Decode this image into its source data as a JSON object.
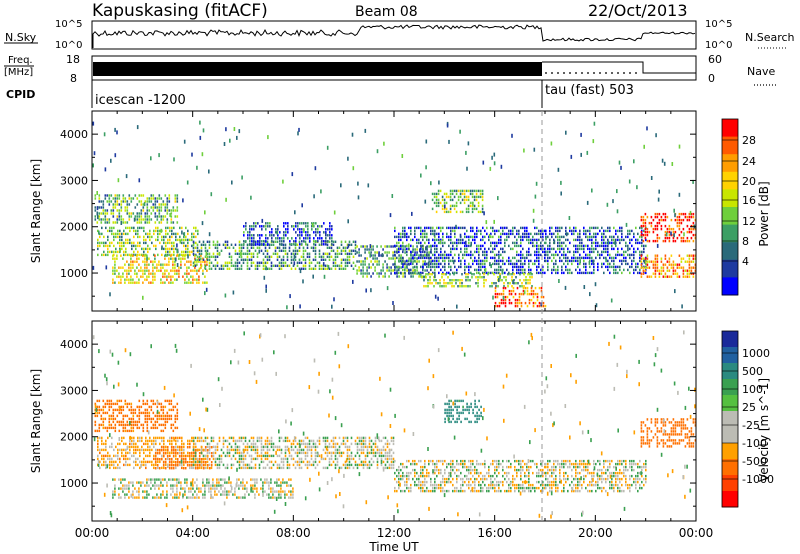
{
  "header": {
    "station": "Kapuskasing (fitACF)",
    "beam": "Beam 08",
    "date": "22/Oct/2013"
  },
  "top_panels": {
    "nsky_label": "N.Sky",
    "nsky_ticks": [
      "10^5",
      "10^0"
    ],
    "nsearch_label": "N.Search",
    "nsearch_ticks": [
      "10^5",
      "10^0"
    ],
    "freq_label": "Freq.",
    "freq_unit": "[MHz]",
    "freq_ticks": [
      "18",
      "8"
    ],
    "nave_label": "Nave",
    "nave_ticks": [
      "60",
      "0"
    ],
    "cpid_label": "CPID",
    "cpid_segments": [
      {
        "label": "icescan -1200",
        "start_hour": 0,
        "end_hour": 18
      },
      {
        "label": "tau (fast) 503",
        "start_hour": 18,
        "end_hour": 24
      }
    ]
  },
  "chart_data": [
    {
      "type": "heatmap",
      "name": "power-panel",
      "ylabel": "Slant Range [km]",
      "y_ticks": [
        1000,
        2000,
        3000,
        4000
      ],
      "ylim": [
        180,
        4500
      ],
      "xlim": [
        0,
        24
      ],
      "colorbar": {
        "label": "Power [dB]",
        "ticks": [
          "28",
          "24",
          "20",
          "16",
          "12",
          "8",
          "4"
        ],
        "colors": [
          "#ff0000",
          "#ff5a00",
          "#ff9d00",
          "#ffd200",
          "#c8e600",
          "#6fcf3c",
          "#3c9f64",
          "#2a6a7a",
          "#1e3aa0",
          "#0000ff"
        ]
      },
      "echo_regions": [
        {
          "start_hour": 0.1,
          "end_hour": 3.4,
          "range_km": [
            2100,
            2700
          ],
          "db": 12
        },
        {
          "start_hour": 0.2,
          "end_hour": 4.2,
          "range_km": [
            1400,
            2000
          ],
          "db": 14
        },
        {
          "start_hour": 0.8,
          "end_hour": 4.6,
          "range_km": [
            800,
            1400
          ],
          "db": 18
        },
        {
          "start_hour": 4.0,
          "end_hour": 10.5,
          "range_km": [
            1100,
            1700
          ],
          "db": 10
        },
        {
          "start_hour": 6.0,
          "end_hour": 9.5,
          "range_km": [
            1600,
            2100
          ],
          "db": 6
        },
        {
          "start_hour": 10.5,
          "end_hour": 13.5,
          "range_km": [
            900,
            1600
          ],
          "db": 10
        },
        {
          "start_hour": 12.0,
          "end_hour": 18.0,
          "range_km": [
            1000,
            2000
          ],
          "db": 6
        },
        {
          "start_hour": 13.5,
          "end_hour": 15.5,
          "range_km": [
            2300,
            2800
          ],
          "db": 14
        },
        {
          "start_hour": 13.0,
          "end_hour": 17.5,
          "range_km": [
            700,
            1000
          ],
          "db": 14
        },
        {
          "start_hour": 16.0,
          "end_hour": 18.0,
          "range_km": [
            300,
            700
          ],
          "db": 26
        },
        {
          "start_hour": 18.0,
          "end_hour": 22.0,
          "range_km": [
            1000,
            2000
          ],
          "db": 6
        },
        {
          "start_hour": 21.8,
          "end_hour": 24.0,
          "range_km": [
            1700,
            2300
          ],
          "db": 28
        },
        {
          "start_hour": 21.8,
          "end_hour": 24.0,
          "range_km": [
            900,
            1400
          ],
          "db": 22
        }
      ]
    },
    {
      "type": "heatmap",
      "name": "velocity-panel",
      "ylabel": "Slant Range [km]",
      "y_ticks": [
        1000,
        2000,
        3000,
        4000
      ],
      "ylim": [
        180,
        4500
      ],
      "xlim": [
        0,
        24
      ],
      "xlabel": "Time UT",
      "x_ticks": [
        "00:00",
        "04:00",
        "08:00",
        "12:00",
        "16:00",
        "20:00",
        "00:00"
      ],
      "colorbar": {
        "label": "Velocity [m s^-1]",
        "ticks": [
          "1000",
          "500",
          "100",
          "25",
          "-25",
          "-100",
          "-500",
          "-1000"
        ],
        "colors": [
          "#1a2a9a",
          "#2060a0",
          "#2a8a80",
          "#3aa050",
          "#55c040",
          "#bcbcb4",
          "#bcbcb4",
          "#ffa000",
          "#ff7000",
          "#ff4000",
          "#ff0000"
        ]
      },
      "echo_regions": [
        {
          "start_hour": 0.1,
          "end_hour": 3.4,
          "range_km": [
            2100,
            2800
          ],
          "vel": -150
        },
        {
          "start_hour": 0.2,
          "end_hour": 4.2,
          "range_km": [
            1300,
            2000
          ],
          "vel": -50
        },
        {
          "start_hour": 2.5,
          "end_hour": 4.8,
          "range_km": [
            1300,
            1800
          ],
          "vel": -300
        },
        {
          "start_hour": 0.8,
          "end_hour": 8.0,
          "range_km": [
            700,
            1100
          ],
          "vel": 0
        },
        {
          "start_hour": 4.0,
          "end_hour": 12.0,
          "range_km": [
            1300,
            2000
          ],
          "vel": 0
        },
        {
          "start_hour": 12.0,
          "end_hour": 18.0,
          "range_km": [
            800,
            1500
          ],
          "vel": 0
        },
        {
          "start_hour": 14.0,
          "end_hour": 15.5,
          "range_km": [
            2300,
            2800
          ],
          "vel": 150
        },
        {
          "start_hour": 18.0,
          "end_hour": 22.0,
          "range_km": [
            800,
            1500
          ],
          "vel": 0
        },
        {
          "start_hour": 21.8,
          "end_hour": 24.0,
          "range_km": [
            1800,
            2400
          ],
          "vel": -300
        }
      ]
    }
  ]
}
